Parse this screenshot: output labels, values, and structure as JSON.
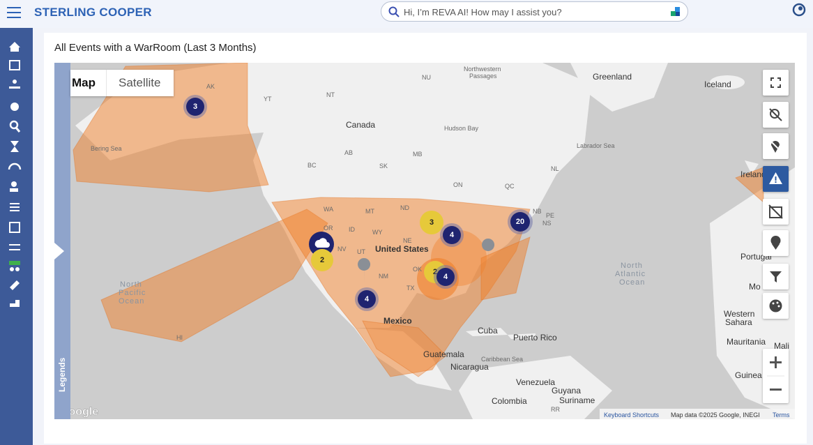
{
  "header": {
    "brand": "STERLING COOPER",
    "search_placeholder": "Hi, I’m REVA AI! How may I assist you?"
  },
  "panel": {
    "title": "All Events with a WarRoom (Last 3 Months)"
  },
  "map": {
    "type_buttons": [
      "Map",
      "Satellite"
    ],
    "legend_tab": "Legends",
    "labels": [
      "Greenland",
      "Iceland",
      "Canada",
      "Hudson Bay",
      "Labrador Sea",
      "Northwestern",
      "Passages",
      "NU",
      "NT",
      "YT",
      "AK",
      "Bering Sea",
      "AB",
      "MB",
      "SK",
      "BC",
      "ON",
      "QC",
      "NL",
      "NB",
      "PE",
      "NS",
      "WA",
      "MT",
      "ND",
      "OR",
      "ID",
      "WY",
      "NE",
      "NV",
      "UT",
      "United States",
      "NM",
      "OK",
      "TX",
      "Mexico",
      "Cuba",
      "Puerto Rico",
      "Guatemala",
      "Nicaragua",
      "Caribbean Sea",
      "Venezuela",
      "Guyana",
      "Suriname",
      "Colombia",
      "North",
      "Pacific",
      "Ocean",
      "North",
      "Atlantic",
      "Ocean",
      "Ireland",
      "Portugal",
      "Mo",
      "Western",
      "Sahara",
      "Mauritania",
      "Mali",
      "Guinea",
      "HI",
      "RR"
    ],
    "clusters": [
      3,
      4,
      3,
      20,
      2,
      4,
      4,
      2
    ],
    "logo": "Google",
    "footer": {
      "shortcuts": "Keyboard Shortcuts",
      "data": "Map data ©2025 Google, INEGI",
      "terms": "Terms"
    }
  }
}
